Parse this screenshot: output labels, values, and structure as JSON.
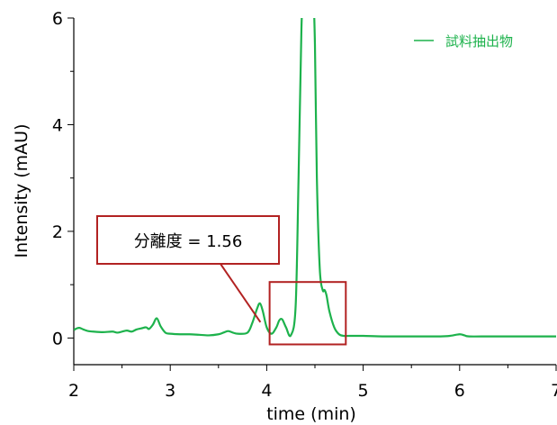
{
  "chart_data": {
    "type": "line",
    "title": "",
    "xlabel": "time (min)",
    "ylabel": "Intensity (mAU)",
    "xlim": [
      2,
      7
    ],
    "ylim": [
      -0.5,
      6
    ],
    "x_ticks": [
      2,
      3,
      4,
      5,
      6,
      7
    ],
    "y_ticks": [
      0,
      2,
      4,
      6
    ],
    "grid": false,
    "legend_position": "top-right",
    "colors": {
      "series": "#1db24c",
      "annotation": "#b22222"
    },
    "series": [
      {
        "name": "試料抽出物",
        "x": [
          2.0,
          2.03,
          2.06,
          2.1,
          2.15,
          2.2,
          2.3,
          2.4,
          2.45,
          2.5,
          2.55,
          2.6,
          2.65,
          2.7,
          2.75,
          2.78,
          2.82,
          2.86,
          2.9,
          2.95,
          3.0,
          3.1,
          3.2,
          3.3,
          3.4,
          3.5,
          3.55,
          3.6,
          3.65,
          3.7,
          3.8,
          3.85,
          3.9,
          3.93,
          3.96,
          4.0,
          4.05,
          4.1,
          4.13,
          4.16,
          4.2,
          4.25,
          4.3,
          4.33,
          4.36,
          4.38,
          4.4,
          4.42,
          4.45,
          4.48,
          4.5,
          4.52,
          4.55,
          4.58,
          4.6,
          4.62,
          4.65,
          4.7,
          4.75,
          4.8,
          4.85,
          4.9,
          5.0,
          5.2,
          5.4,
          5.6,
          5.8,
          5.9,
          6.0,
          6.05,
          6.1,
          6.3,
          6.5,
          6.7,
          6.9,
          7.0
        ],
        "y": [
          0.15,
          0.18,
          0.19,
          0.16,
          0.13,
          0.12,
          0.11,
          0.12,
          0.1,
          0.12,
          0.14,
          0.12,
          0.16,
          0.18,
          0.2,
          0.17,
          0.25,
          0.37,
          0.22,
          0.1,
          0.08,
          0.07,
          0.07,
          0.06,
          0.05,
          0.07,
          0.1,
          0.13,
          0.1,
          0.08,
          0.1,
          0.28,
          0.55,
          0.65,
          0.5,
          0.2,
          0.08,
          0.2,
          0.33,
          0.35,
          0.2,
          0.05,
          0.6,
          3.0,
          5.8,
          6.5,
          6.5,
          6.5,
          6.5,
          6.5,
          5.5,
          3.0,
          1.3,
          0.9,
          0.9,
          0.8,
          0.5,
          0.2,
          0.07,
          0.04,
          0.04,
          0.04,
          0.04,
          0.03,
          0.03,
          0.03,
          0.03,
          0.04,
          0.07,
          0.05,
          0.03,
          0.03,
          0.03,
          0.03,
          0.03,
          0.03
        ]
      }
    ],
    "annotation": {
      "text": "分離度 = 1.56",
      "highlight_range": {
        "x": [
          4.03,
          4.82
        ],
        "y": [
          -0.12,
          1.05
        ]
      },
      "pointer_target": {
        "x": 4.0,
        "y": 0.6
      }
    }
  }
}
